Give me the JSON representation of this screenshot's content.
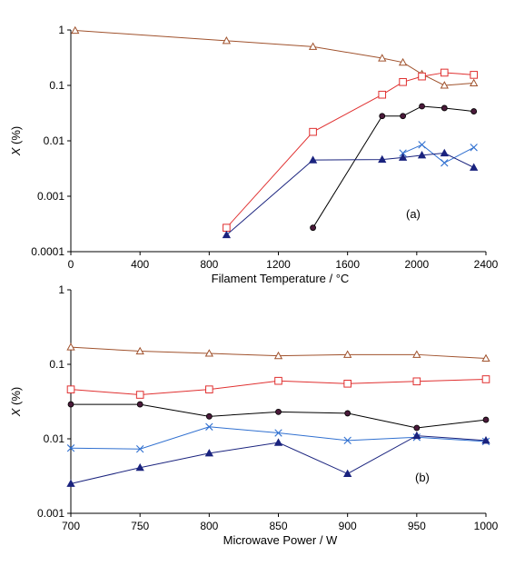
{
  "chart_data": [
    {
      "type": "line",
      "annotation": "(a)",
      "xlabel": "Filament Temperature / °C",
      "ylabel": "X (%)",
      "ylabel_var": "X",
      "ylabel_unit": " (%)",
      "xscale": "linear",
      "yscale": "log",
      "xlim": [
        0,
        2400
      ],
      "ylim": [
        0.0001,
        1
      ],
      "xticks": [
        0,
        400,
        800,
        1200,
        1600,
        2000,
        2400
      ],
      "xtick_labels": [
        "0",
        "400",
        "800",
        "1200",
        "1600",
        "2000",
        "2400"
      ],
      "yticks": [
        0.0001,
        0.001,
        0.01,
        0.1,
        1
      ],
      "ytick_labels": [
        "0.0001",
        "0.001",
        "0.01",
        "0.1",
        "1"
      ],
      "grid": false,
      "legend": false,
      "series": [
        {
          "marker": "triangle-open",
          "color": "#a0522d",
          "x": [
            25,
            900,
            1400,
            1800,
            1920,
            2030,
            2160,
            2330
          ],
          "y": [
            0.98,
            0.64,
            0.5,
            0.31,
            0.26,
            0.16,
            0.1,
            0.11
          ]
        },
        {
          "marker": "square-open",
          "color": "#e03030",
          "x": [
            900,
            1400,
            1800,
            1920,
            2030,
            2160,
            2330
          ],
          "y": [
            0.00027,
            0.0145,
            0.068,
            0.115,
            0.145,
            0.17,
            0.155
          ]
        },
        {
          "marker": "circle-filled",
          "color": "#000000",
          "x": [
            1400,
            1800,
            1920,
            2030,
            2160,
            2330
          ],
          "y": [
            0.00027,
            0.028,
            0.028,
            0.042,
            0.039,
            0.034
          ]
        },
        {
          "marker": "x",
          "color": "#3070d0",
          "x": [
            1920,
            2030,
            2160,
            2330
          ],
          "y": [
            0.006,
            0.0085,
            0.004,
            0.0076
          ]
        },
        {
          "marker": "triangle-filled",
          "color": "#1a237e",
          "x": [
            900,
            1400,
            1800,
            1920,
            2030,
            2160,
            2330
          ],
          "y": [
            0.0002,
            0.0045,
            0.0046,
            0.005,
            0.0055,
            0.006,
            0.0033
          ]
        }
      ]
    },
    {
      "type": "line",
      "annotation": "(b)",
      "xlabel": "Microwave Power / W",
      "ylabel": "X (%)",
      "ylabel_var": "X",
      "ylabel_unit": " (%)",
      "xscale": "linear",
      "yscale": "log",
      "xlim": [
        700,
        1000
      ],
      "ylim": [
        0.001,
        1
      ],
      "xticks": [
        700,
        750,
        800,
        850,
        900,
        950,
        1000
      ],
      "xtick_labels": [
        "700",
        "750",
        "800",
        "850",
        "900",
        "950",
        "1000"
      ],
      "yticks": [
        0.001,
        0.01,
        0.1,
        1
      ],
      "ytick_labels": [
        "0.001",
        "0.01",
        "0.1",
        "1"
      ],
      "grid": false,
      "legend": false,
      "series": [
        {
          "marker": "triangle-open",
          "color": "#a0522d",
          "x": [
            700,
            750,
            800,
            850,
            900,
            950,
            1000
          ],
          "y": [
            0.17,
            0.15,
            0.14,
            0.13,
            0.135,
            0.135,
            0.12
          ]
        },
        {
          "marker": "square-open",
          "color": "#e03030",
          "x": [
            700,
            750,
            800,
            850,
            900,
            950,
            1000
          ],
          "y": [
            0.046,
            0.039,
            0.046,
            0.06,
            0.055,
            0.059,
            0.063
          ]
        },
        {
          "marker": "circle-filled",
          "color": "#000000",
          "x": [
            700,
            750,
            800,
            850,
            900,
            950,
            1000
          ],
          "y": [
            0.029,
            0.029,
            0.02,
            0.023,
            0.022,
            0.014,
            0.018
          ]
        },
        {
          "marker": "x",
          "color": "#3070d0",
          "x": [
            700,
            750,
            800,
            850,
            900,
            950,
            1000
          ],
          "y": [
            0.0075,
            0.0073,
            0.0145,
            0.012,
            0.0095,
            0.0105,
            0.0092
          ]
        },
        {
          "marker": "triangle-filled",
          "color": "#1a237e",
          "x": [
            700,
            750,
            800,
            850,
            900,
            950,
            1000
          ],
          "y": [
            0.0025,
            0.0041,
            0.0064,
            0.0089,
            0.0034,
            0.011,
            0.0095
          ]
        }
      ]
    }
  ]
}
